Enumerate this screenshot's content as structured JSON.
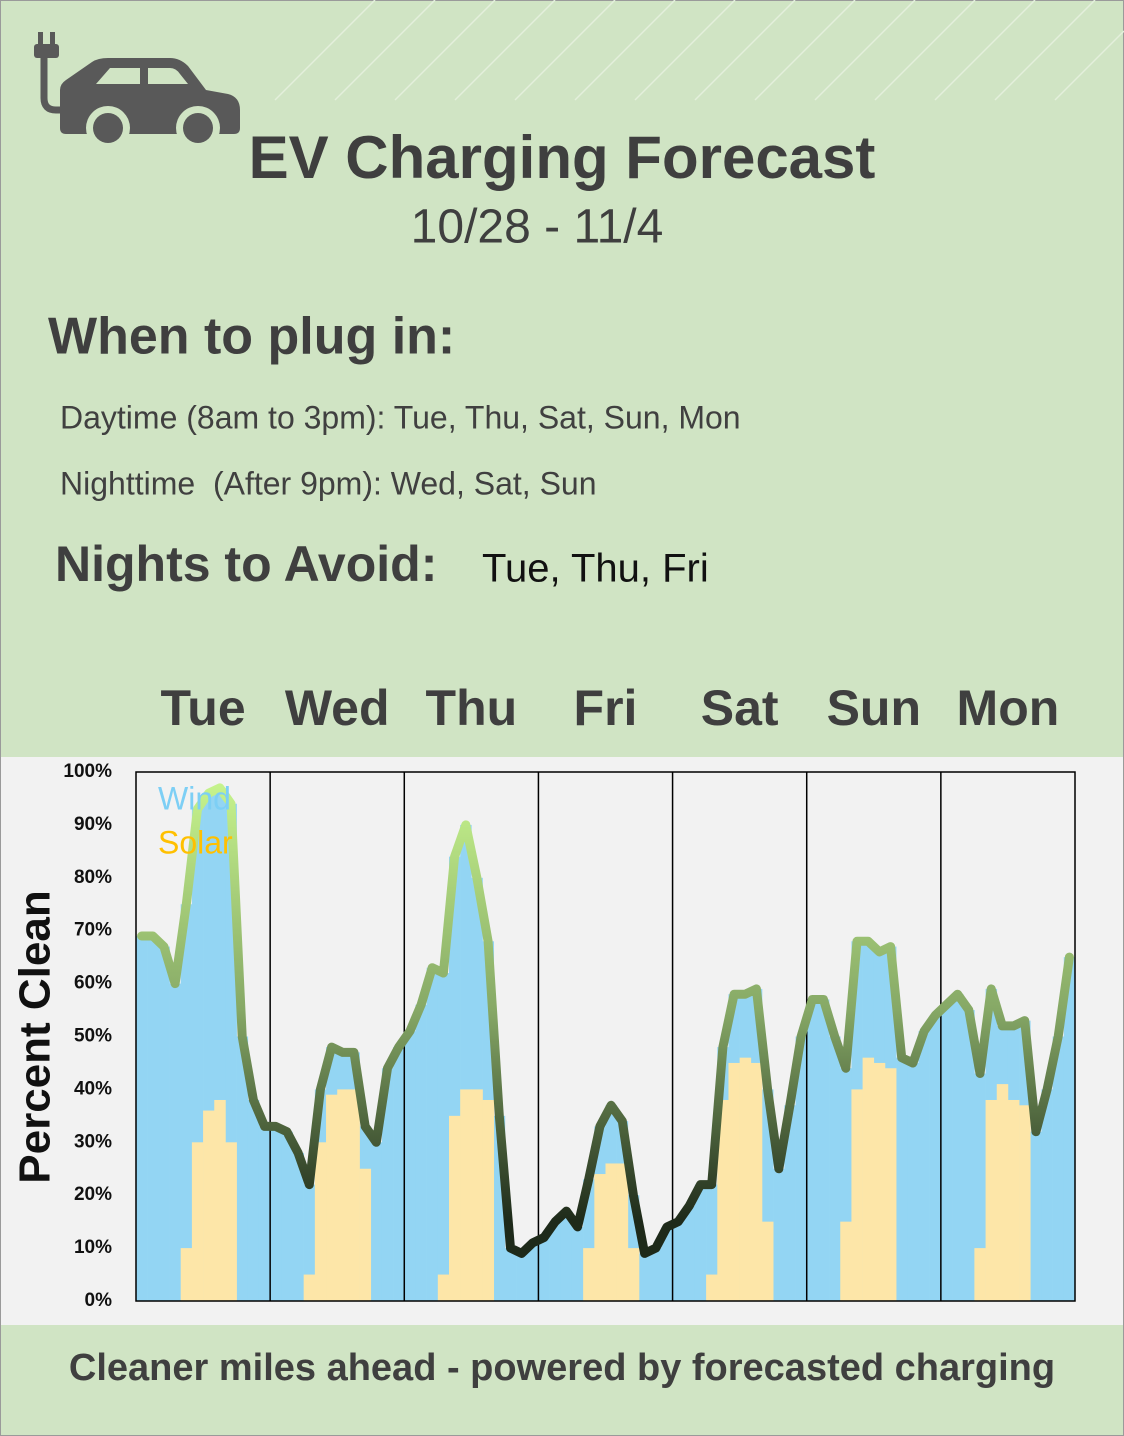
{
  "header": {
    "title": "EV Charging Forecast",
    "subtitle": "10/28 - 11/4"
  },
  "plug_in": {
    "heading": "When to plug in:",
    "daytime": "Daytime (8am to 3pm): Tue, Thu, Sat, Sun, Mon",
    "nighttime": "Nighttime  (After 9pm): Wed, Sat, Sun"
  },
  "avoid": {
    "heading": "Nights to Avoid:",
    "days": "Tue, Thu, Fri"
  },
  "footer": "Cleaner miles ahead - powered by forecasted charging",
  "chart_data": {
    "type": "bar",
    "y_label": "Percent Clean",
    "days": [
      "Tue",
      "Wed",
      "Thu",
      "Fri",
      "Sat",
      "Sun",
      "Mon"
    ],
    "ylim": [
      0,
      100
    ],
    "yticks": [
      {
        "value": 0,
        "label": "0%"
      },
      {
        "value": 10,
        "label": "10%"
      },
      {
        "value": 20,
        "label": "20%"
      },
      {
        "value": 30,
        "label": "30%"
      },
      {
        "value": 40,
        "label": "40%"
      },
      {
        "value": 50,
        "label": "50%"
      },
      {
        "value": 60,
        "label": "60%"
      },
      {
        "value": 70,
        "label": "70%"
      },
      {
        "value": 80,
        "label": "80%"
      },
      {
        "value": 90,
        "label": "90%"
      },
      {
        "value": 100,
        "label": "100%"
      }
    ],
    "grid": false,
    "series": [
      {
        "name": "Wind",
        "color": "#93d5f3",
        "values": [
          69,
          69,
          67,
          60,
          75,
          93,
          96,
          97,
          94,
          50,
          38,
          33,
          33,
          32,
          28,
          22,
          40,
          48,
          47,
          47,
          33,
          30,
          44,
          48,
          51,
          56,
          63,
          62,
          84,
          90,
          80,
          68,
          35,
          10,
          9,
          11,
          12,
          15,
          17,
          14,
          23,
          33,
          37,
          34,
          20,
          9,
          10,
          14,
          15,
          18,
          22,
          22,
          48,
          58,
          58,
          59,
          40,
          25,
          37,
          50,
          57,
          57,
          50,
          44,
          68,
          68,
          66,
          67,
          46,
          45,
          51,
          54,
          56,
          58,
          55,
          43,
          59,
          52,
          52,
          53,
          32,
          40,
          50,
          65
        ]
      },
      {
        "name": "Solar",
        "color": "#fde6a8",
        "values": [
          0,
          0,
          0,
          0,
          10,
          30,
          36,
          38,
          30,
          0,
          0,
          0,
          0,
          0,
          0,
          5,
          30,
          39,
          40,
          40,
          25,
          0,
          0,
          0,
          0,
          0,
          0,
          5,
          35,
          40,
          40,
          38,
          0,
          0,
          0,
          0,
          0,
          0,
          0,
          0,
          10,
          24,
          26,
          26,
          10,
          0,
          0,
          0,
          0,
          0,
          0,
          5,
          38,
          45,
          46,
          45,
          15,
          0,
          0,
          0,
          0,
          0,
          0,
          15,
          40,
          46,
          45,
          44,
          0,
          0,
          0,
          0,
          0,
          0,
          0,
          10,
          38,
          41,
          38,
          37,
          0,
          0,
          0,
          0
        ]
      }
    ]
  }
}
